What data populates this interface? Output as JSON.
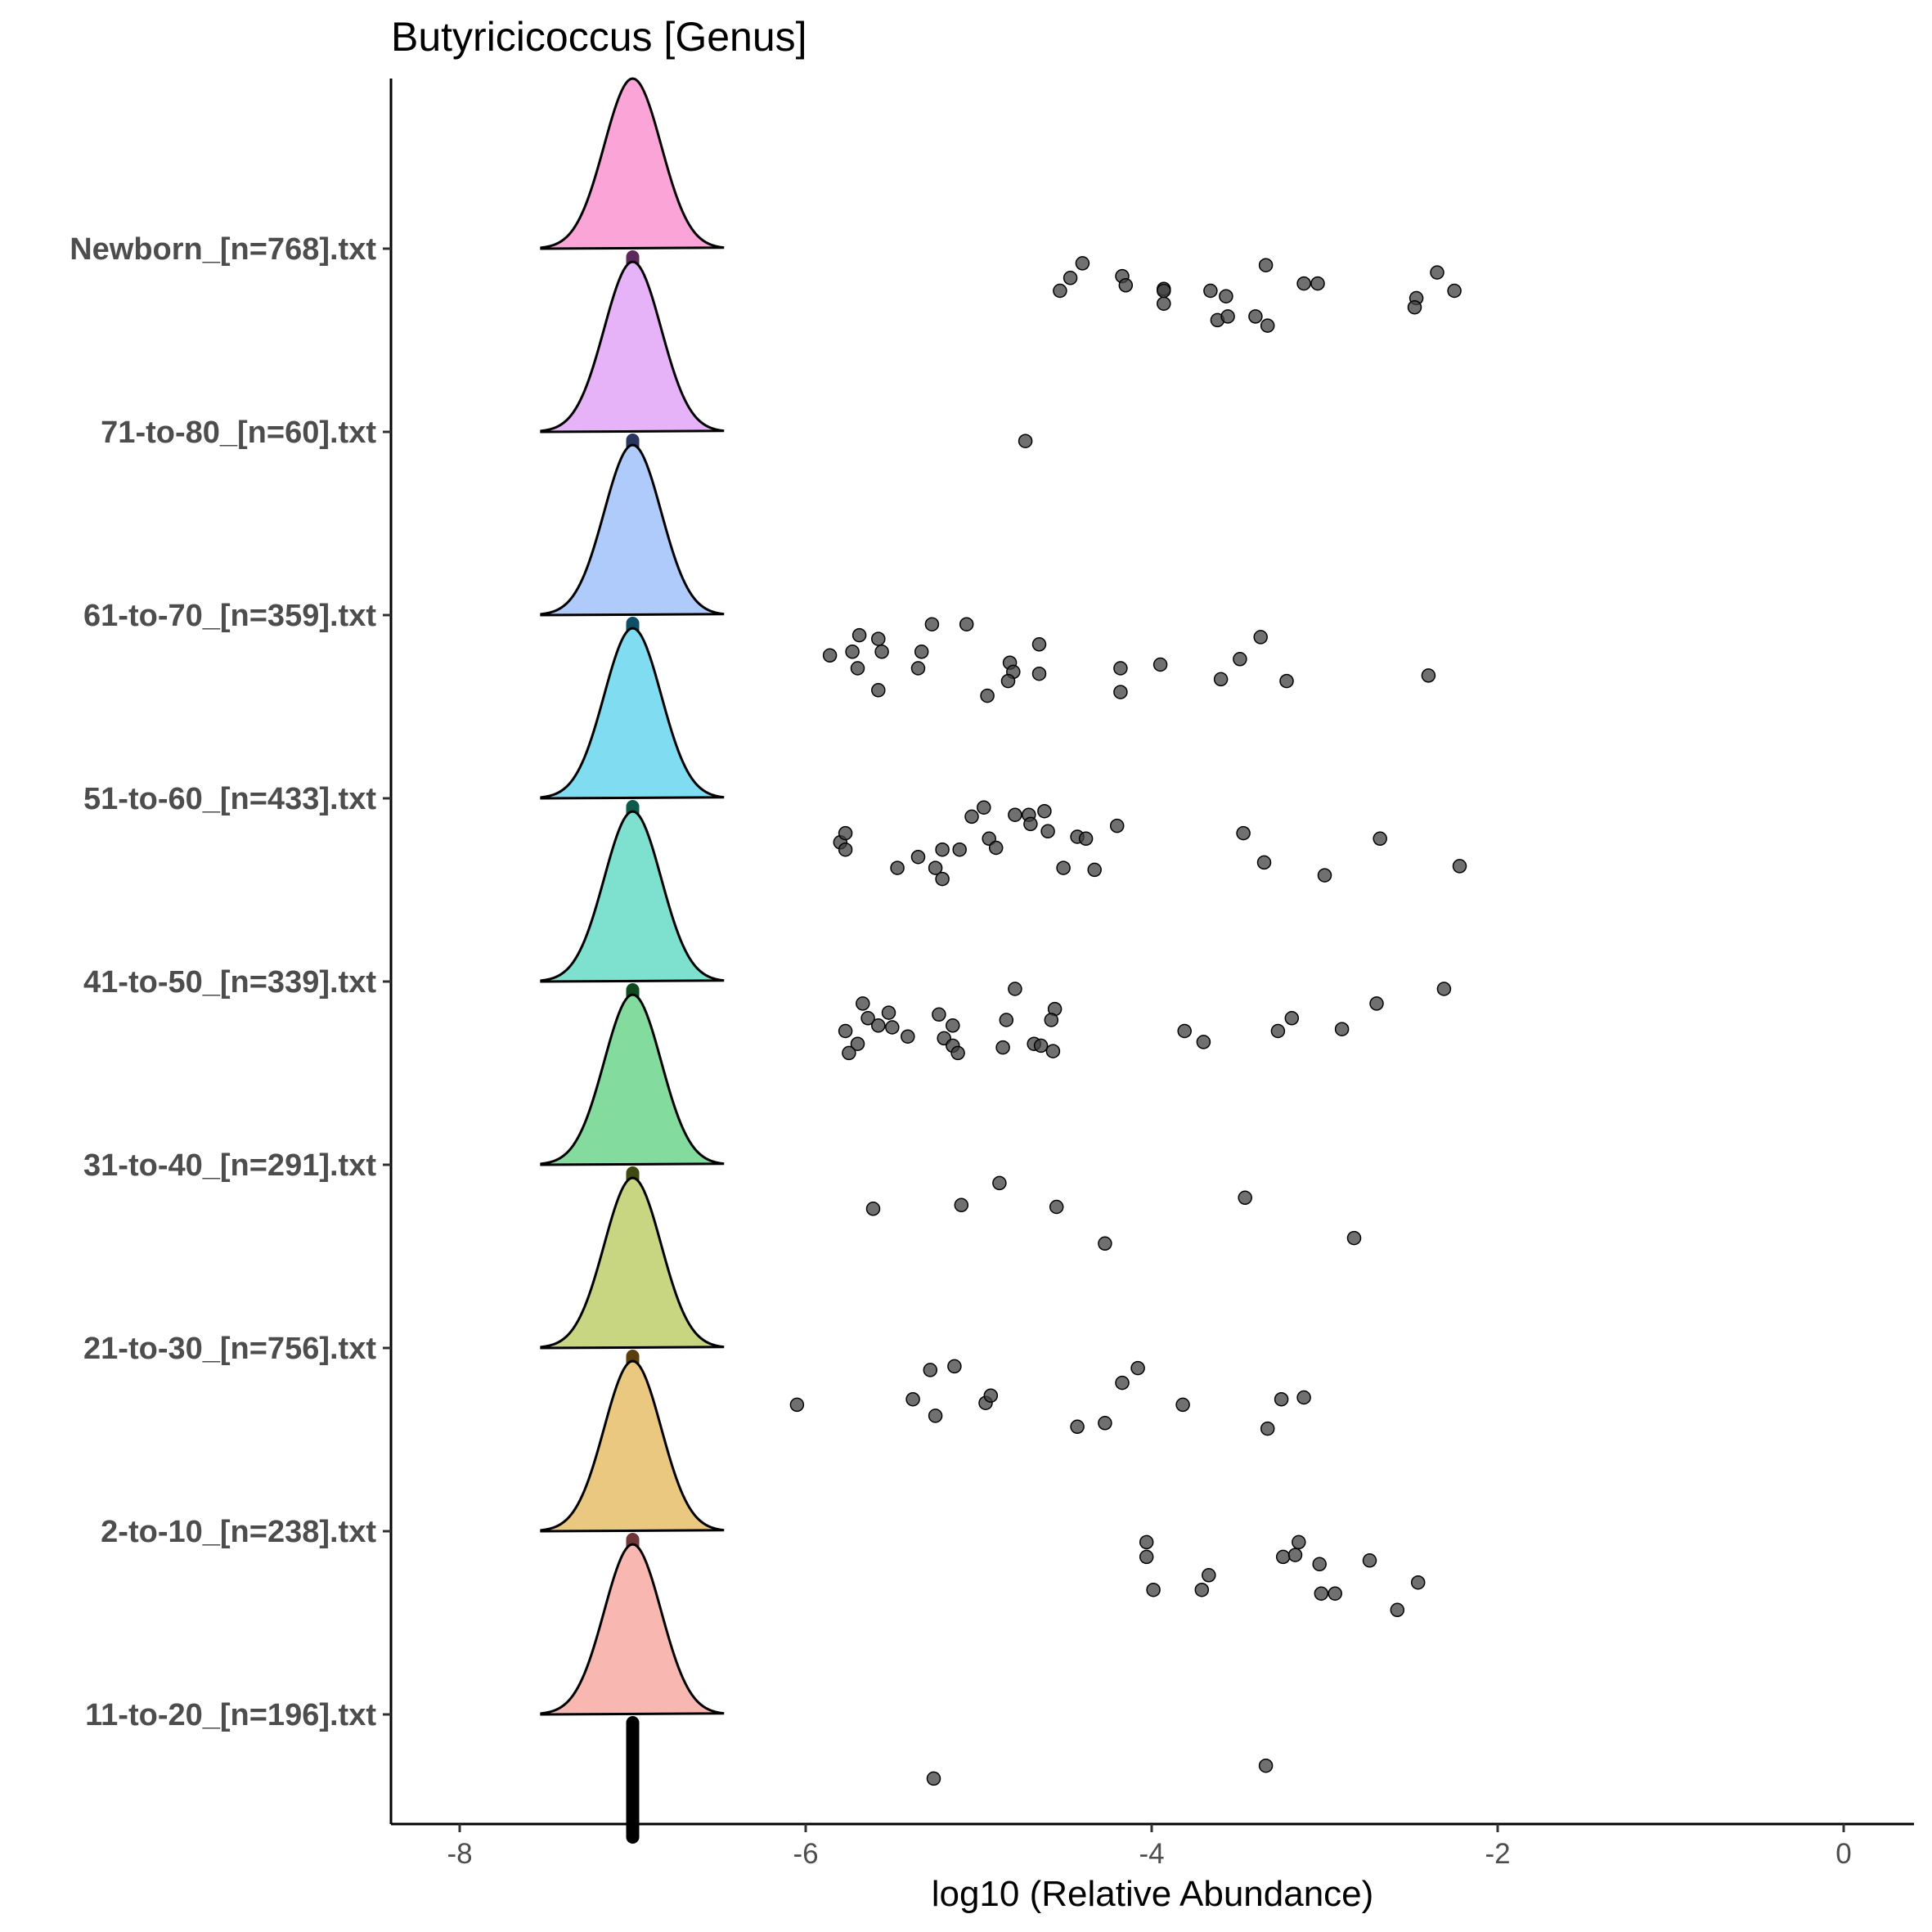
{
  "chart_data": {
    "type": "ridgeline",
    "title": "Butyricicoccus [Genus]",
    "xlabel": "log10 (Relative Abundance)",
    "ylabel": "",
    "xlim": [
      -8.4,
      0.4
    ],
    "xticks": [
      -8,
      -6,
      -4,
      -2,
      0
    ],
    "grid": false,
    "legend": "none",
    "point_color": "#404040",
    "groups": [
      {
        "name": "Newborn_[n=768].txt",
        "fill": "#FBA4D8",
        "median_color": "#5C2A5A",
        "median": -7.0,
        "points": [
          [
            -4.4,
            -0.08
          ],
          [
            -4.47,
            -0.16
          ],
          [
            -4.53,
            -0.23
          ],
          [
            -4.17,
            -0.15
          ],
          [
            -4.15,
            -0.2
          ],
          [
            -3.93,
            -0.22
          ],
          [
            -3.93,
            -0.3
          ],
          [
            -3.93,
            -0.23
          ],
          [
            -3.66,
            -0.23
          ],
          [
            -3.57,
            -0.26
          ],
          [
            -3.62,
            -0.39
          ],
          [
            -3.56,
            -0.37
          ],
          [
            -3.4,
            -0.37
          ],
          [
            -3.33,
            -0.42
          ],
          [
            -3.34,
            -0.09
          ],
          [
            -3.12,
            -0.19
          ],
          [
            -3.04,
            -0.19
          ],
          [
            -2.35,
            -0.13
          ],
          [
            -2.47,
            -0.27
          ],
          [
            -2.48,
            -0.32
          ],
          [
            -2.25,
            -0.23
          ]
        ]
      },
      {
        "name": "71-to-80_[n=60].txt",
        "fill": "#E6B2F8",
        "median_color": "#2A3560",
        "median": -7.0,
        "points": [
          [
            -4.73,
            -0.05
          ]
        ]
      },
      {
        "name": "61-to-70_[n=359].txt",
        "fill": "#AFCBFB",
        "median_color": "#0E4F66",
        "median": -7.0,
        "points": [
          [
            -5.86,
            -0.22
          ],
          [
            -5.73,
            -0.2
          ],
          [
            -5.69,
            -0.11
          ],
          [
            -5.7,
            -0.29
          ],
          [
            -5.58,
            -0.13
          ],
          [
            -5.56,
            -0.2
          ],
          [
            -5.58,
            -0.41
          ],
          [
            -5.33,
            -0.2
          ],
          [
            -5.35,
            -0.29
          ],
          [
            -5.27,
            -0.05
          ],
          [
            -5.07,
            -0.05
          ],
          [
            -4.82,
            -0.26
          ],
          [
            -4.8,
            -0.31
          ],
          [
            -4.65,
            -0.16
          ],
          [
            -4.65,
            -0.32
          ],
          [
            -4.83,
            -0.36
          ],
          [
            -4.95,
            -0.44
          ],
          [
            -4.18,
            -0.29
          ],
          [
            -4.18,
            -0.42
          ],
          [
            -3.95,
            -0.27
          ],
          [
            -3.6,
            -0.35
          ],
          [
            -3.49,
            -0.24
          ],
          [
            -3.37,
            -0.12
          ],
          [
            -3.22,
            -0.36
          ],
          [
            -2.4,
            -0.33
          ]
        ]
      },
      {
        "name": "51-to-60_[n=433].txt",
        "fill": "#80DCF0",
        "median_color": "#0C5A4A",
        "median": -7.0,
        "points": [
          [
            -5.8,
            -0.24
          ],
          [
            -5.77,
            -0.19
          ],
          [
            -5.77,
            -0.28
          ],
          [
            -5.47,
            -0.38
          ],
          [
            -5.35,
            -0.32
          ],
          [
            -5.21,
            -0.28
          ],
          [
            -5.25,
            -0.38
          ],
          [
            -5.21,
            -0.44
          ],
          [
            -5.11,
            -0.28
          ],
          [
            -5.04,
            -0.1
          ],
          [
            -4.97,
            -0.05
          ],
          [
            -4.94,
            -0.22
          ],
          [
            -4.9,
            -0.27
          ],
          [
            -4.79,
            -0.09
          ],
          [
            -4.71,
            -0.09
          ],
          [
            -4.7,
            -0.14
          ],
          [
            -4.62,
            -0.07
          ],
          [
            -4.6,
            -0.18
          ],
          [
            -4.43,
            -0.21
          ],
          [
            -4.38,
            -0.22
          ],
          [
            -4.51,
            -0.38
          ],
          [
            -4.33,
            -0.39
          ],
          [
            -4.2,
            -0.15
          ],
          [
            -3.47,
            -0.19
          ],
          [
            -3.35,
            -0.35
          ],
          [
            -3.0,
            -0.42
          ],
          [
            -2.68,
            -0.22
          ],
          [
            -2.22,
            -0.37
          ]
        ]
      },
      {
        "name": "41-to-50_[n=339].txt",
        "fill": "#7EE0CF",
        "median_color": "#0E4A1E",
        "median": -7.0,
        "points": [
          [
            -5.67,
            -0.12
          ],
          [
            -5.77,
            -0.27
          ],
          [
            -5.64,
            -0.2
          ],
          [
            -5.58,
            -0.24
          ],
          [
            -5.52,
            -0.17
          ],
          [
            -5.5,
            -0.25
          ],
          [
            -5.7,
            -0.34
          ],
          [
            -5.75,
            -0.39
          ],
          [
            -5.41,
            -0.3
          ],
          [
            -5.23,
            -0.18
          ],
          [
            -5.2,
            -0.31
          ],
          [
            -5.15,
            -0.24
          ],
          [
            -5.15,
            -0.35
          ],
          [
            -5.12,
            -0.39
          ],
          [
            -4.79,
            -0.04
          ],
          [
            -4.84,
            -0.21
          ],
          [
            -4.86,
            -0.36
          ],
          [
            -4.68,
            -0.34
          ],
          [
            -4.64,
            -0.35
          ],
          [
            -4.56,
            -0.15
          ],
          [
            -4.58,
            -0.21
          ],
          [
            -4.57,
            -0.38
          ],
          [
            -3.81,
            -0.27
          ],
          [
            -3.7,
            -0.33
          ],
          [
            -3.27,
            -0.27
          ],
          [
            -3.19,
            -0.2
          ],
          [
            -2.9,
            -0.26
          ],
          [
            -2.7,
            -0.12
          ],
          [
            -2.31,
            -0.04
          ]
        ]
      },
      {
        "name": "31-to-40_[n=291].txt",
        "fill": "#83DC9E",
        "median_color": "#3F4A10",
        "median": -7.0,
        "points": [
          [
            -5.61,
            -0.24
          ],
          [
            -5.1,
            -0.22
          ],
          [
            -4.88,
            -0.1
          ],
          [
            -4.55,
            -0.23
          ],
          [
            -4.27,
            -0.43
          ],
          [
            -3.46,
            -0.18
          ],
          [
            -2.83,
            -0.4
          ]
        ]
      },
      {
        "name": "21-to-30_[n=756].txt",
        "fill": "#C8D682",
        "median_color": "#5A3E0C",
        "median": -7.0,
        "points": [
          [
            -6.05,
            -0.31
          ],
          [
            -5.38,
            -0.28
          ],
          [
            -5.28,
            -0.12
          ],
          [
            -5.25,
            -0.37
          ],
          [
            -5.14,
            -0.1
          ],
          [
            -4.96,
            -0.3
          ],
          [
            -4.93,
            -0.26
          ],
          [
            -4.43,
            -0.43
          ],
          [
            -4.27,
            -0.41
          ],
          [
            -4.17,
            -0.19
          ],
          [
            -4.08,
            -0.11
          ],
          [
            -3.82,
            -0.31
          ],
          [
            -3.33,
            -0.44
          ],
          [
            -3.25,
            -0.28
          ],
          [
            -3.12,
            -0.27
          ]
        ]
      },
      {
        "name": "2-to-10_[n=238].txt",
        "fill": "#EAC880",
        "median_color": "#6E3636",
        "median": -7.0,
        "points": [
          [
            -4.03,
            -0.06
          ],
          [
            -4.03,
            -0.14
          ],
          [
            -3.99,
            -0.32
          ],
          [
            -3.67,
            -0.24
          ],
          [
            -3.71,
            -0.32
          ],
          [
            -3.24,
            -0.14
          ],
          [
            -3.17,
            -0.13
          ],
          [
            -3.15,
            -0.06
          ],
          [
            -3.03,
            -0.18
          ],
          [
            -3.02,
            -0.34
          ],
          [
            -2.94,
            -0.34
          ],
          [
            -2.74,
            -0.16
          ],
          [
            -2.58,
            -0.43
          ],
          [
            -2.46,
            -0.28
          ]
        ]
      },
      {
        "name": "11-to-20_[n=196].txt",
        "fill": "#F8B7B0",
        "median_color": "#000000",
        "median": -7.0,
        "points": [
          [
            -5.26,
            -0.35
          ],
          [
            -3.34,
            -0.28
          ]
        ]
      }
    ]
  }
}
